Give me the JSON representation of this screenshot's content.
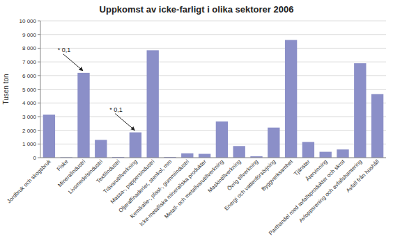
{
  "chart_data": {
    "type": "bar",
    "title": "Uppkomst av icke-farligt i olika sektorer 2006",
    "ylabel": "Tusen ton",
    "categories": [
      "Jordbruk och skogsbruk",
      "Fiske",
      "Mineralindustri",
      "Livsmedelsindustri",
      "Textilindustri",
      "Trävarutillverkning",
      "Massa-, pappersindustri",
      "Oljeraffinaderier, stenkol, mm",
      "Kemikalie-, plast-, gummiindustri",
      "Icke-metalliska mineraliska produkter",
      "Metall- och metallvarutillverkning",
      "Maskintillverkning",
      "Övrig tillverkning",
      "Energi och vattenförsörjning",
      "Byggverksamhet",
      "Tjänster",
      "Återvinning",
      "Parthandel med avfallsprodukter och skrot",
      "Avloppsrening och avfallshantering",
      "Avfall från hushåll"
    ],
    "values": [
      3150,
      30,
      6200,
      1300,
      50,
      1850,
      7850,
      50,
      320,
      280,
      2650,
      850,
      100,
      2200,
      8600,
      1150,
      430,
      600,
      6900,
      4650
    ],
    "color": "#8B8FC8",
    "ylim": [
      0,
      10000
    ],
    "yticks": [
      0,
      {
        "value": 1000,
        "label": "1 000"
      },
      {
        "value": 2000,
        "label": "2 000"
      },
      {
        "value": 3000,
        "label": "3 000"
      },
      {
        "value": 4000,
        "label": "4 000"
      },
      {
        "value": 5000,
        "label": "5 000"
      },
      {
        "value": 6000,
        "label": "6 000"
      },
      {
        "value": 7000,
        "label": "7 000"
      },
      {
        "value": 8000,
        "label": "8 000"
      },
      {
        "value": 9000,
        "label": "9 000"
      },
      {
        "value": 10000,
        "label": "10 000"
      }
    ],
    "grid": true,
    "annotations": [
      {
        "text": "* 0,1",
        "category": "Mineralindustri"
      },
      {
        "text": "* 0,1",
        "category": "Trävarutillverkning"
      }
    ]
  }
}
